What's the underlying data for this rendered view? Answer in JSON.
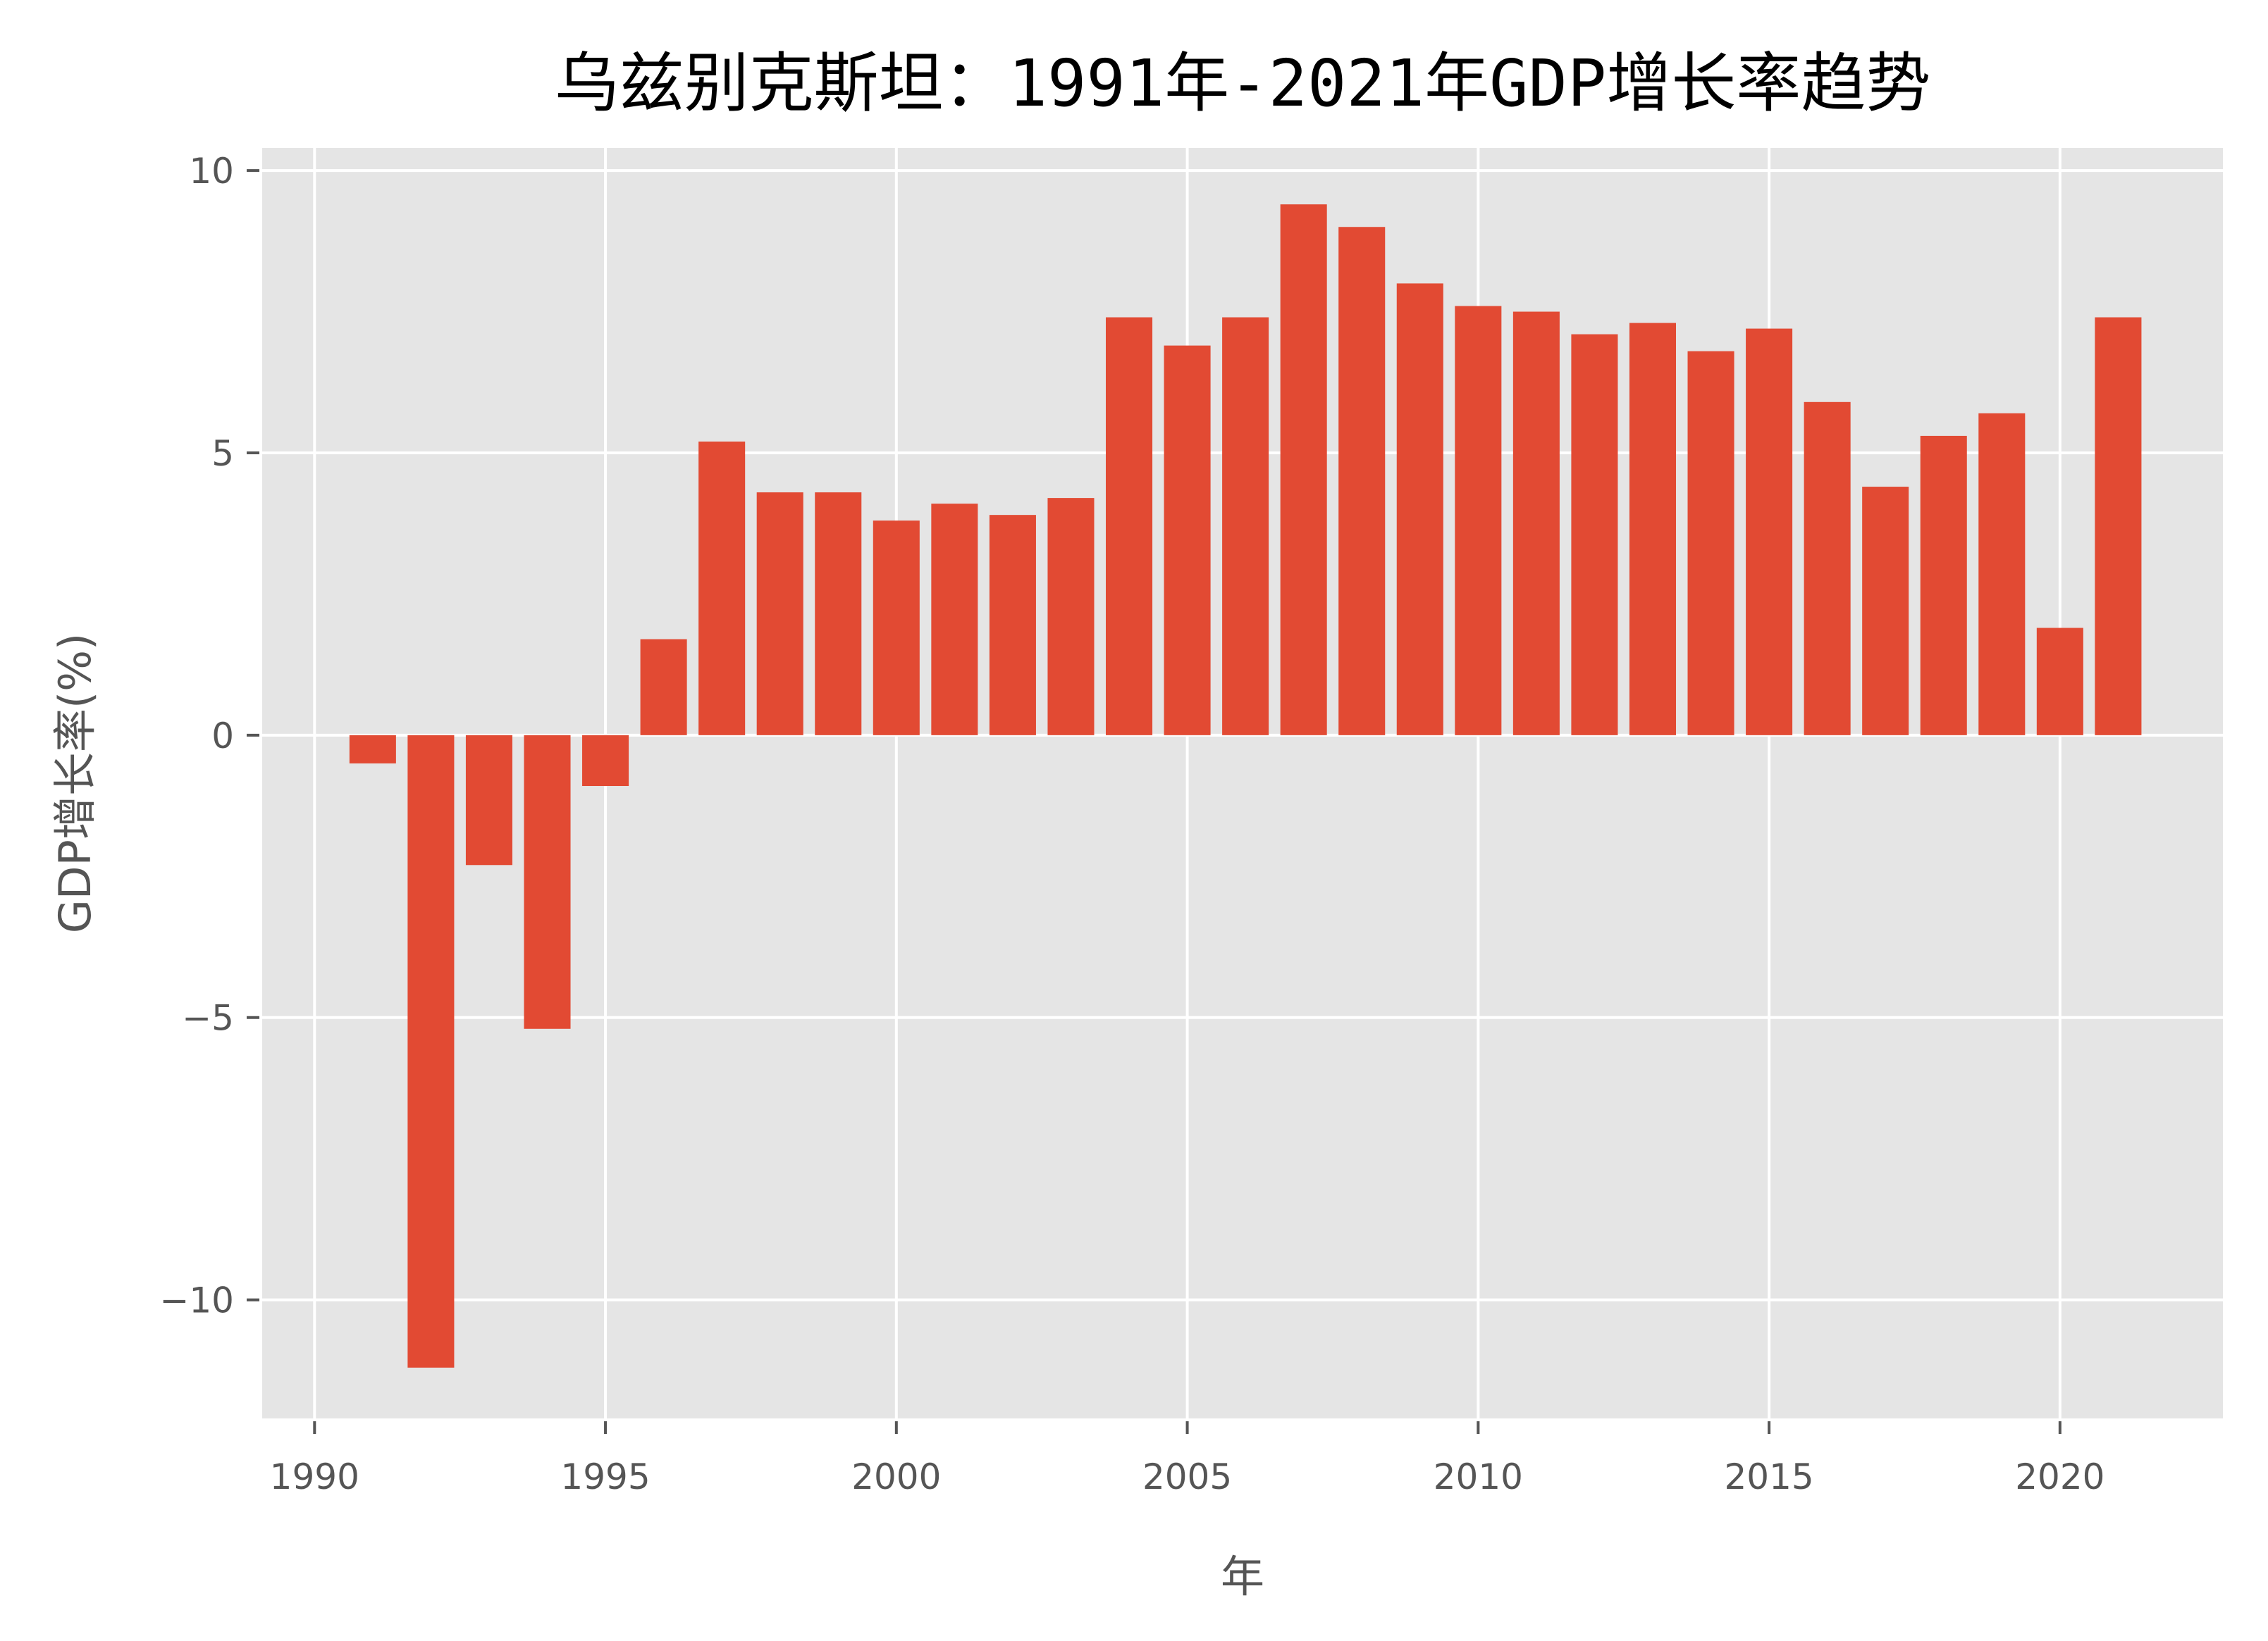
{
  "chart_data": {
    "type": "bar",
    "title": "乌兹别克斯坦：1991年-2021年GDP增长率趋势",
    "xlabel": "年",
    "ylabel": "GDP增长率(%)",
    "categories": [
      1991,
      1992,
      1993,
      1994,
      1995,
      1996,
      1997,
      1998,
      1999,
      2000,
      2001,
      2002,
      2003,
      2004,
      2005,
      2006,
      2007,
      2008,
      2009,
      2010,
      2011,
      2012,
      2013,
      2014,
      2015,
      2016,
      2017,
      2018,
      2019,
      2020,
      2021
    ],
    "values": [
      -0.5,
      -11.2,
      -2.3,
      -5.2,
      -0.9,
      1.7,
      5.2,
      4.3,
      4.3,
      3.8,
      4.1,
      3.9,
      4.2,
      7.4,
      6.9,
      7.4,
      9.4,
      9.0,
      8.0,
      7.6,
      7.5,
      7.1,
      7.3,
      6.8,
      7.2,
      5.9,
      4.4,
      5.3,
      5.7,
      1.9,
      7.4
    ],
    "xlim": [
      1989.1,
      2022.8
    ],
    "ylim": [
      -12.1,
      10.4
    ],
    "xticks": [
      1990,
      1995,
      2000,
      2005,
      2010,
      2015,
      2020
    ],
    "xtick_labels": [
      "1990",
      "1995",
      "2000",
      "2005",
      "2010",
      "2015",
      "2020"
    ],
    "yticks": [
      -10,
      -5,
      0,
      5,
      10
    ],
    "ytick_labels": [
      "−10",
      "−5",
      "0",
      "5",
      "10"
    ],
    "grid": true,
    "legend": null,
    "style": "ggplot",
    "colors": {
      "bar": "#E24A33",
      "plot_background": "#E5E5E5",
      "grid": "#FFFFFF",
      "tick_text": "#555555",
      "title_text": "#000000"
    }
  }
}
